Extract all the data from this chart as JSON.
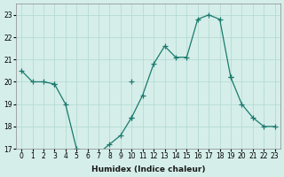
{
  "title": "",
  "xlabel": "Humidex (Indice chaleur)",
  "ylabel": "",
  "background_color": "#d5eee9",
  "grid_color": "#b0d8d0",
  "line_color": "#1a7a6e",
  "marker": "+",
  "x_all": [
    0,
    1,
    2,
    3,
    4,
    5,
    6,
    7,
    8,
    9,
    10,
    11,
    12,
    13,
    14,
    15,
    16,
    17,
    18,
    19,
    20,
    21,
    22,
    23
  ],
  "line1": [
    20.5,
    20.0,
    20.0,
    19.9,
    null,
    null,
    null,
    null,
    null,
    null,
    20.0,
    null,
    null,
    null,
    null,
    null,
    null,
    null,
    null,
    20.2,
    null,
    null,
    null,
    null
  ],
  "line2": [
    null,
    null,
    null,
    19.9,
    19.0,
    17.0,
    16.8,
    16.8,
    17.2,
    17.6,
    18.4,
    null,
    null,
    null,
    null,
    null,
    null,
    null,
    null,
    null,
    null,
    null,
    null,
    null
  ],
  "line3": [
    null,
    null,
    null,
    null,
    null,
    null,
    null,
    null,
    null,
    null,
    18.4,
    19.4,
    20.8,
    21.6,
    21.1,
    21.1,
    22.8,
    23.0,
    22.8,
    20.2,
    19.0,
    18.4,
    18.0,
    18.0
  ],
  "ylim": [
    17,
    23.5
  ],
  "xlim": [
    -0.5,
    23.5
  ],
  "yticks": [
    17,
    18,
    19,
    20,
    21,
    22,
    23
  ],
  "xticks": [
    0,
    1,
    2,
    3,
    4,
    5,
    6,
    7,
    8,
    9,
    10,
    11,
    12,
    13,
    14,
    15,
    16,
    17,
    18,
    19,
    20,
    21,
    22,
    23
  ]
}
